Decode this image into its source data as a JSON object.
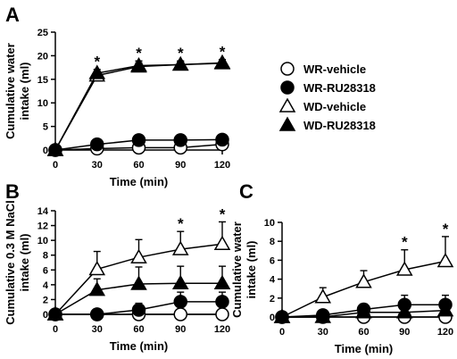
{
  "chart_data": [
    {
      "panel": "A",
      "type": "line",
      "x": [
        0,
        30,
        60,
        90,
        120
      ],
      "xticks": [
        "0",
        "30",
        "60",
        "90",
        "120"
      ],
      "xlim": [
        0,
        120
      ],
      "ylim": [
        0,
        25
      ],
      "yticks": [
        0,
        5,
        10,
        15,
        20,
        25
      ],
      "xlabel": "Time (min)",
      "ylabel": [
        "Cumulative water",
        "intake (ml)"
      ],
      "series": [
        {
          "name": "WR-vehicle",
          "marker": "circle-open",
          "values": [
            0,
            0.3,
            0.5,
            0.5,
            1.2
          ],
          "err": [
            0,
            0.3,
            0.3,
            0.3,
            0.4
          ]
        },
        {
          "name": "WR-RU28318",
          "marker": "circle-filled",
          "values": [
            0,
            1.2,
            2.1,
            2.1,
            2.2
          ],
          "err": [
            0,
            0.4,
            0.4,
            0.4,
            0.4
          ]
        },
        {
          "name": "WD-vehicle",
          "marker": "triangle-open",
          "values": [
            0,
            15.8,
            17.7,
            18.1,
            18.5
          ],
          "err": [
            0,
            0.8,
            0.8,
            0.6,
            0.6
          ]
        },
        {
          "name": "WD-RU28318",
          "marker": "triangle-filled",
          "values": [
            0,
            16.3,
            17.9,
            18.1,
            18.4
          ],
          "err": [
            0,
            0.8,
            1.0,
            0.8,
            0.8
          ]
        }
      ],
      "significance": [
        {
          "x": 30,
          "label": "*"
        },
        {
          "x": 60,
          "label": "*"
        },
        {
          "x": 90,
          "label": "*"
        },
        {
          "x": 120,
          "label": "*"
        }
      ],
      "legend": "right"
    },
    {
      "panel": "B",
      "type": "line",
      "x": [
        0,
        30,
        60,
        90,
        120
      ],
      "xticks": [
        "0",
        "30",
        "60",
        "90",
        "120"
      ],
      "xlim": [
        0,
        120
      ],
      "ylim": [
        0,
        14
      ],
      "yticks": [
        0,
        2,
        4,
        6,
        8,
        10,
        12,
        14
      ],
      "xlabel": "Time (min)",
      "ylabel": [
        "Cumulative 0.3 M NaCl",
        "intake (ml)"
      ],
      "series": [
        {
          "name": "WR-vehicle",
          "marker": "circle-open",
          "values": [
            0,
            0,
            0,
            0,
            0
          ],
          "err": [
            0,
            0,
            0,
            0,
            0
          ]
        },
        {
          "name": "WR-RU28318",
          "marker": "circle-filled",
          "values": [
            0,
            0,
            0.6,
            1.7,
            1.7
          ],
          "err": [
            0,
            0,
            0.9,
            1.3,
            1.3
          ]
        },
        {
          "name": "WD-vehicle",
          "marker": "triangle-open",
          "values": [
            0,
            6.1,
            7.7,
            8.8,
            9.5
          ],
          "err": [
            0,
            2.4,
            2.4,
            2.4,
            3.0
          ]
        },
        {
          "name": "WD-RU28318",
          "marker": "triangle-filled",
          "values": [
            0,
            3.3,
            4.1,
            4.2,
            4.2
          ],
          "err": [
            0,
            1.5,
            2.3,
            2.3,
            2.3
          ]
        }
      ],
      "significance": [
        {
          "x": 90,
          "label": "*"
        },
        {
          "x": 120,
          "label": "*"
        }
      ]
    },
    {
      "panel": "C",
      "type": "line",
      "x": [
        0,
        30,
        60,
        90,
        120
      ],
      "xticks": [
        "0",
        "30",
        "60",
        "90",
        "120"
      ],
      "xlim": [
        0,
        120
      ],
      "ylim": [
        0,
        10
      ],
      "yticks": [
        0,
        2,
        4,
        6,
        8,
        10
      ],
      "xlabel": "Time (min)",
      "ylabel": [
        "Cumulative water",
        "intake (ml)"
      ],
      "series": [
        {
          "name": "WR-vehicle",
          "marker": "circle-open",
          "values": [
            0,
            0,
            0,
            0,
            0
          ],
          "err": [
            0,
            0,
            0,
            0,
            0
          ]
        },
        {
          "name": "WR-RU28318",
          "marker": "circle-filled",
          "values": [
            0,
            0.2,
            0.8,
            1.3,
            1.3
          ],
          "err": [
            0,
            0.2,
            0.6,
            1.0,
            1.0
          ]
        },
        {
          "name": "WD-vehicle",
          "marker": "triangle-open",
          "values": [
            0,
            2.1,
            3.7,
            5.0,
            5.9
          ],
          "err": [
            0,
            1.0,
            1.2,
            2.1,
            2.6
          ]
        },
        {
          "name": "WD-RU28318",
          "marker": "triangle-filled",
          "values": [
            0,
            0,
            0.5,
            0.5,
            0.7
          ],
          "err": [
            0,
            0,
            0.3,
            0.4,
            0.4
          ]
        }
      ],
      "significance": [
        {
          "x": 90,
          "label": "*"
        },
        {
          "x": 120,
          "label": "*"
        }
      ]
    }
  ]
}
